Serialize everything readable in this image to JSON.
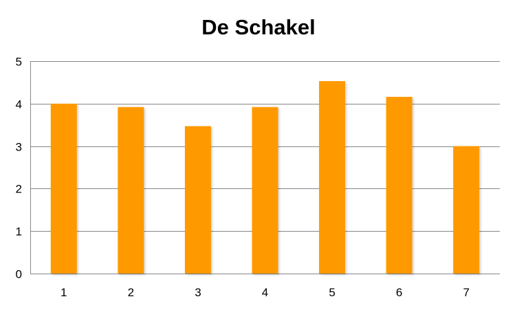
{
  "chart_data": {
    "type": "bar",
    "title": "De Schakel",
    "categories": [
      "1",
      "2",
      "3",
      "4",
      "5",
      "6",
      "7"
    ],
    "values": [
      4.0,
      3.92,
      3.47,
      3.92,
      4.53,
      4.16,
      3.0
    ],
    "xlabel": "",
    "ylabel": "",
    "ylim": [
      0,
      5
    ],
    "yticks": [
      "0",
      "1",
      "2",
      "3",
      "4",
      "5"
    ],
    "grid": true,
    "legend": "none",
    "bar_color": "#FF9900",
    "grid_color": "#868686"
  }
}
